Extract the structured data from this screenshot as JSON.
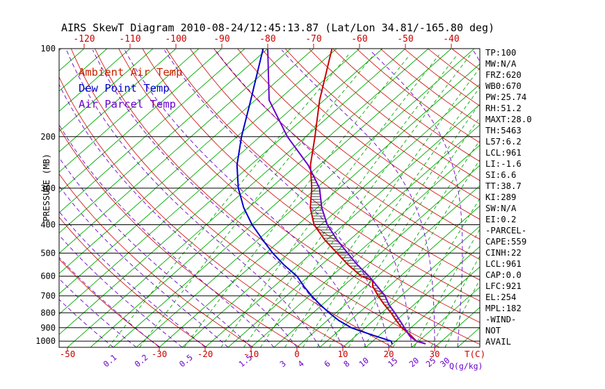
{
  "title": "AIRS SkewT Diagram 2010-08-24/12:45:13.87 (Lat/Lon 34.81/-165.80 deg)",
  "legend": {
    "ambient_label": "Ambient Air Temp",
    "dew_label": "Dew Point Temp",
    "parcel_label": "Air Parcel Temp"
  },
  "axes": {
    "pressure_axis_label": "PRESSURE (MB)",
    "pressure_ticks": [
      100,
      200,
      300,
      400,
      500,
      600,
      700,
      800,
      900,
      1000
    ],
    "top_temp_ticks": [
      -120,
      -110,
      -100,
      -90,
      -80,
      -70,
      -60,
      -50,
      -40
    ],
    "bottom_temp_ticks": [
      -50,
      -30,
      -20,
      -10,
      0,
      10,
      20,
      30
    ],
    "temp_unit_label": "T(C)",
    "mixing_ratio_ticks": [
      0.1,
      0.2,
      0.5,
      1.5,
      3,
      4,
      6,
      8,
      10,
      15,
      20,
      25,
      30
    ],
    "mixing_unit_label": "Q(g/kg)"
  },
  "info_panel": {
    "lines": [
      "TP:100",
      "MW:N/A",
      "FRZ:620",
      "WB0:670",
      "PW:25.74",
      "RH:51.2",
      "MAXT:28.0",
      "TH:5463",
      "L57:6.2",
      "LCL:961",
      "LI:-1.6",
      "SI:6.6",
      "TT:38.7",
      "KI:289",
      "SW:N/A",
      "EI:0.2",
      "-PARCEL-",
      "CAPE:559",
      "CINH:22",
      "LCL:961",
      "CAP:0.0",
      "LFC:921",
      "EL:254",
      "MPL:182",
      "-WIND-",
      "NOT",
      "AVAIL"
    ]
  },
  "colors": {
    "temp": "#cc0000",
    "dew": "#0000cc",
    "parcel": "#6a00cc",
    "isotherm": "#00aa00",
    "mixing_line": "#00aa00",
    "dry_adiabat": "#cc0000",
    "moist_adiabat": "#6a00cc",
    "axis": "#000000",
    "hatch": "#111111"
  },
  "chart_data": {
    "type": "line",
    "title": "AIRS SkewT Diagram",
    "xlabel": "Temperature (C), skewed 45 deg",
    "ylabel": "Pressure (MB), log scale",
    "pressure_range": [
      100,
      1050
    ],
    "grid": "skew-t log-p (isotherms, dry/moist adiabats, mixing ratio lines)",
    "series": [
      {
        "name": "Ambient Air Temp",
        "color_key": "temp",
        "points_p_t": [
          [
            1020,
            27
          ],
          [
            1000,
            24.5
          ],
          [
            950,
            21.5
          ],
          [
            900,
            18
          ],
          [
            850,
            15
          ],
          [
            800,
            12
          ],
          [
            750,
            8.5
          ],
          [
            700,
            5
          ],
          [
            650,
            1.5
          ],
          [
            620,
            0
          ],
          [
            600,
            -3.5
          ],
          [
            550,
            -9
          ],
          [
            500,
            -14.5
          ],
          [
            450,
            -20.5
          ],
          [
            400,
            -26.5
          ],
          [
            350,
            -31.5
          ],
          [
            300,
            -36
          ],
          [
            250,
            -42
          ],
          [
            200,
            -48
          ],
          [
            150,
            -56
          ],
          [
            100,
            -66
          ]
        ]
      },
      {
        "name": "Dew Point Temp",
        "color_key": "dew",
        "points_p_t": [
          [
            1020,
            19.8
          ],
          [
            1000,
            19
          ],
          [
            950,
            13
          ],
          [
            900,
            7
          ],
          [
            850,
            2.5
          ],
          [
            800,
            -1.5
          ],
          [
            750,
            -5.5
          ],
          [
            700,
            -9.5
          ],
          [
            650,
            -13.5
          ],
          [
            600,
            -17.5
          ],
          [
            550,
            -23
          ],
          [
            500,
            -28.5
          ],
          [
            450,
            -34
          ],
          [
            400,
            -40
          ],
          [
            350,
            -46
          ],
          [
            300,
            -52
          ],
          [
            250,
            -58
          ],
          [
            200,
            -64
          ],
          [
            150,
            -71
          ],
          [
            100,
            -81
          ]
        ]
      },
      {
        "name": "Air Parcel Temp",
        "color_key": "parcel",
        "points_p_t": [
          [
            1020,
            27
          ],
          [
            1000,
            24.5
          ],
          [
            961,
            21.8
          ],
          [
            900,
            18.6
          ],
          [
            850,
            15.8
          ],
          [
            800,
            12.8
          ],
          [
            750,
            9.5
          ],
          [
            700,
            6.5
          ],
          [
            650,
            2.5
          ],
          [
            600,
            -1.8
          ],
          [
            550,
            -7
          ],
          [
            500,
            -12.2
          ],
          [
            450,
            -17.8
          ],
          [
            400,
            -23.6
          ],
          [
            350,
            -29
          ],
          [
            300,
            -34.3
          ],
          [
            250,
            -42.5
          ],
          [
            200,
            -54
          ],
          [
            150,
            -67
          ],
          [
            100,
            -80
          ]
        ]
      }
    ],
    "annotations": {
      "cape_hatch_between": [
        "Ambient Air Temp",
        "Air Parcel Temp"
      ],
      "lfc_mb": 921,
      "el_mb": 254,
      "cape_j_kg": 559,
      "cinh_j_kg": 22
    }
  }
}
